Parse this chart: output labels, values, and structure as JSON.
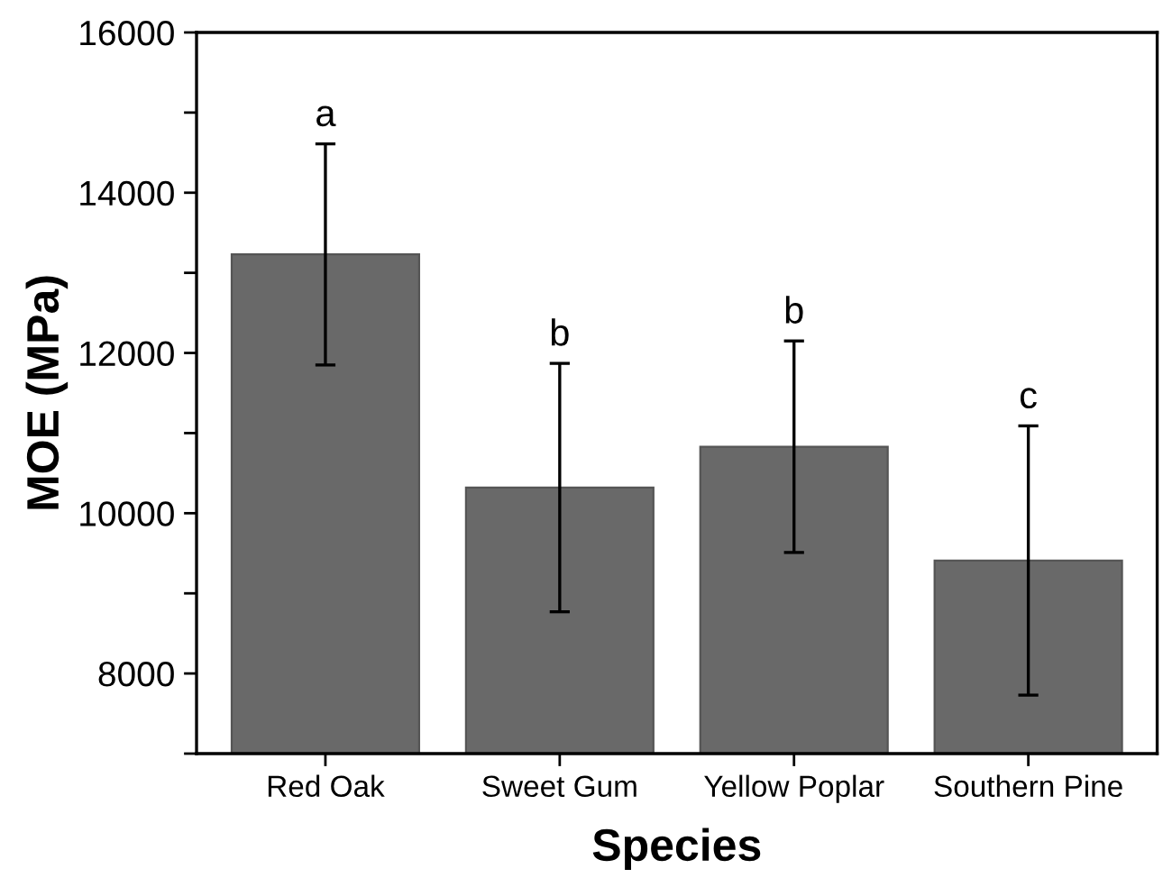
{
  "chart_data": {
    "type": "bar",
    "xlabel": "Species",
    "ylabel": "MOE (MPa)",
    "categories": [
      "Red Oak",
      "Sweet Gum",
      "Yellow Poplar",
      "Southern Pine"
    ],
    "values": [
      13230,
      10320,
      10830,
      9410
    ],
    "errors": [
      1380,
      1550,
      1320,
      1680
    ],
    "color": "#696969",
    "ylim": [
      7000,
      16000
    ],
    "yticks": [
      {
        "value": 7000,
        "label": null
      },
      8000,
      {
        "value": 9000,
        "label": null
      },
      10000,
      {
        "value": 11000,
        "label": null
      },
      12000,
      {
        "value": 13000,
        "label": null
      },
      14000,
      {
        "value": 15000,
        "label": null
      },
      16000
    ],
    "annotations": [
      "a",
      "b",
      "b",
      "c"
    ],
    "grid": false,
    "legend": false
  }
}
